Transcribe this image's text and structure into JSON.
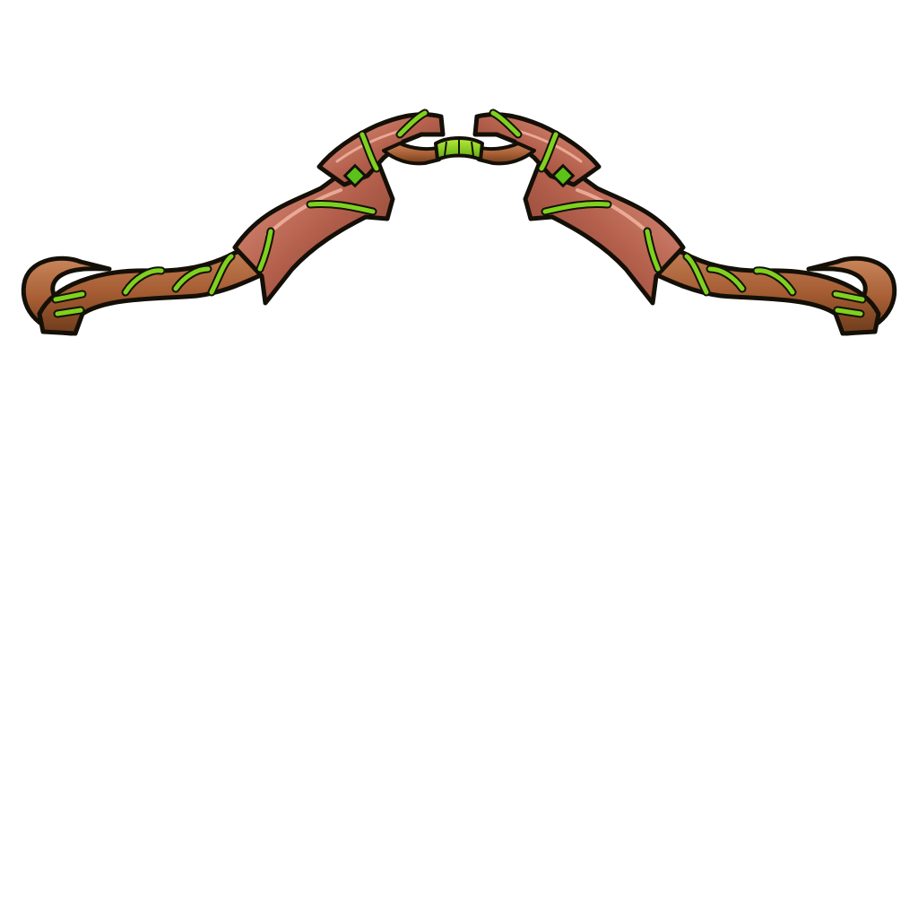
{
  "asset": {
    "kind": "bow sprite",
    "background": "#ffffff",
    "colors": {
      "outline": "#141008",
      "wood_dark": "#6e3c1c",
      "wood_mid": "#a65d33",
      "wood_light": "#c9855a",
      "plate_mid": "#b4604d",
      "plate_light": "#dc8e78",
      "plate_shadow": "#7a3a28",
      "vine": "#7fd11f",
      "vine_light": "#b6ee3a",
      "gem": "#5cc21a"
    },
    "parts": [
      "left-limb",
      "right-limb",
      "grip",
      "left-tip-curl",
      "right-tip-curl",
      "left-gem",
      "right-gem"
    ]
  }
}
